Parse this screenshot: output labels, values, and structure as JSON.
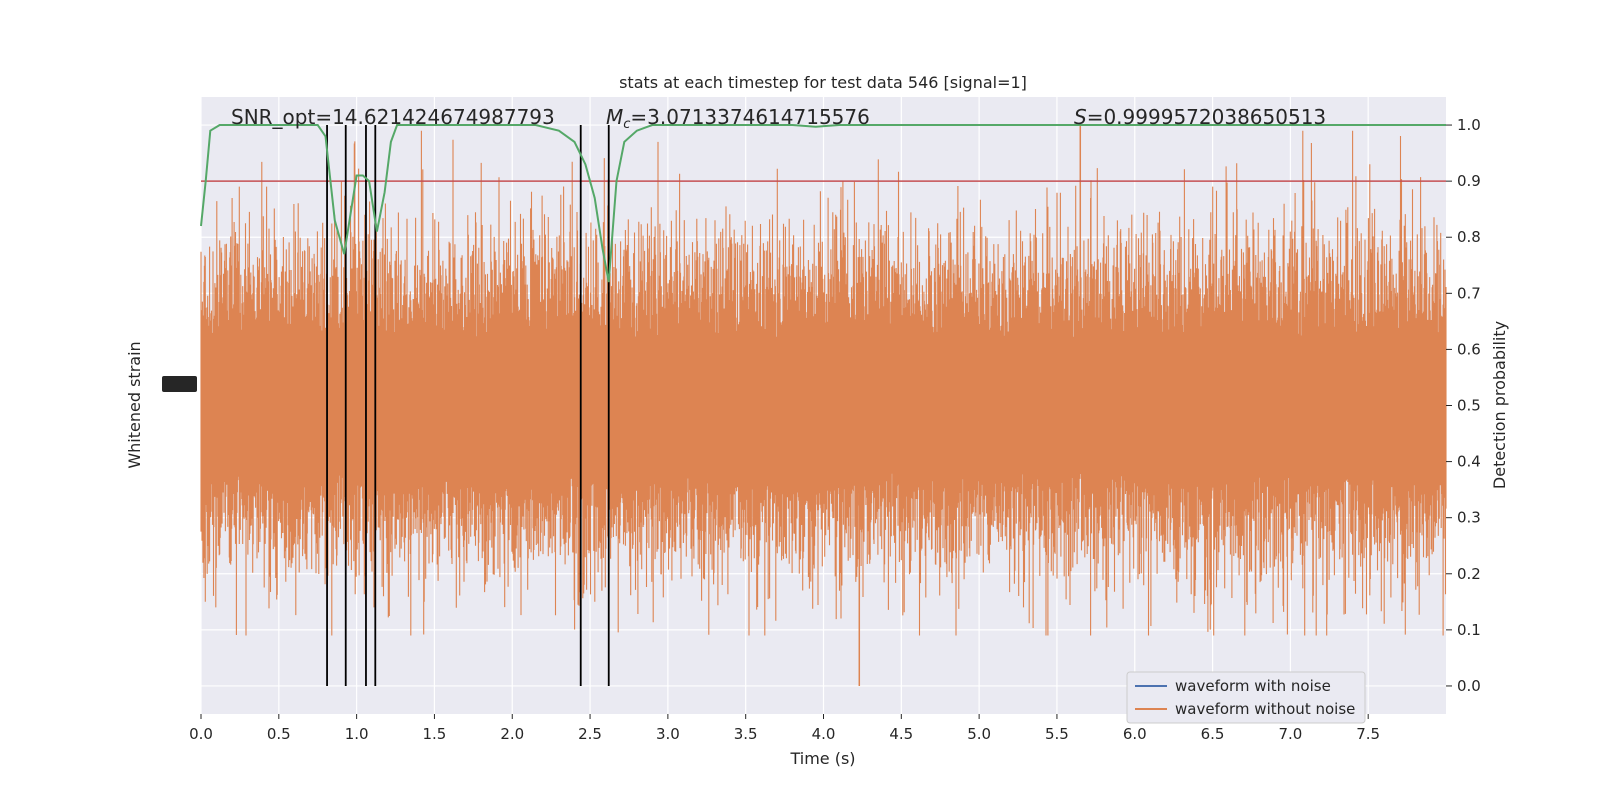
{
  "chart_data": {
    "type": "line",
    "title": "stats at each timestep for test data 546 [signal=1]",
    "xlabel": "Time (s)",
    "ylabel_left": "Whitened strain",
    "ylabel_right": "Detection probability",
    "xlim": [
      0.0,
      8.0
    ],
    "ylim_right": [
      -0.05,
      1.05
    ],
    "x_ticks": [
      "0.0",
      "0.5",
      "1.0",
      "1.5",
      "2.0",
      "2.5",
      "3.0",
      "3.5",
      "4.0",
      "4.5",
      "5.0",
      "5.5",
      "6.0",
      "6.5",
      "7.0",
      "7.5"
    ],
    "x_tick_values": [
      0.0,
      0.5,
      1.0,
      1.5,
      2.0,
      2.5,
      3.0,
      3.5,
      4.0,
      4.5,
      5.0,
      5.5,
      6.0,
      6.5,
      7.0,
      7.5
    ],
    "y_ticks_right": [
      "0.0",
      "0.1",
      "0.2",
      "0.3",
      "0.4",
      "0.5",
      "0.6",
      "0.7",
      "0.8",
      "0.9",
      "1.0"
    ],
    "y_tick_values_right": [
      0.0,
      0.1,
      0.2,
      0.3,
      0.4,
      0.5,
      0.6,
      0.7,
      0.8,
      0.9,
      1.0
    ],
    "annotations": {
      "snr": "SNR_opt=14.621424674987793",
      "mc_symbol": "M",
      "mc_sub": "c",
      "mc_value": "=3.0713374614715576",
      "s_symbol": "S",
      "s_value": "=0.9999572038650513"
    },
    "threshold": 0.9,
    "vertical_markers_s": [
      0.81,
      0.93,
      1.06,
      1.12,
      2.44,
      2.62
    ],
    "series": [
      {
        "name": "waveform with noise",
        "color": "#4c72b0"
      },
      {
        "name": "waveform without noise",
        "color": "#dd8452",
        "envelope_center": 0.5,
        "envelope_typical_amplitude": 0.25,
        "peak_high": 1.0,
        "peak_low": 0.0,
        "peak_low_time": 4.23
      },
      {
        "name": "detection probability",
        "color": "#55a868",
        "x": [
          0.0,
          0.03,
          0.06,
          0.12,
          0.2,
          0.4,
          0.6,
          0.75,
          0.8,
          0.86,
          0.92,
          0.96,
          1.0,
          1.04,
          1.08,
          1.13,
          1.18,
          1.22,
          1.26,
          1.5,
          1.8,
          2.0,
          2.15,
          2.3,
          2.4,
          2.47,
          2.53,
          2.58,
          2.62,
          2.67,
          2.72,
          2.8,
          2.9,
          3.0,
          3.2,
          3.5,
          3.8,
          3.95,
          4.1,
          4.5,
          5.0,
          5.5,
          6.0,
          6.5,
          7.0,
          7.5,
          8.0
        ],
        "y": [
          0.82,
          0.9,
          0.99,
          1.0,
          1.0,
          1.0,
          1.0,
          1.0,
          0.98,
          0.83,
          0.77,
          0.84,
          0.91,
          0.91,
          0.9,
          0.81,
          0.88,
          0.97,
          1.0,
          1.0,
          1.0,
          1.0,
          1.0,
          0.99,
          0.97,
          0.93,
          0.87,
          0.78,
          0.72,
          0.9,
          0.97,
          0.99,
          1.0,
          1.0,
          1.0,
          1.0,
          1.0,
          0.997,
          1.0,
          1.0,
          1.0,
          1.0,
          1.0,
          1.0,
          1.0,
          1.0,
          1.0
        ]
      }
    ],
    "threshold_color": "#c44e52",
    "marker_color": "#000000",
    "plot_background": "#eaeaf2",
    "grid": true,
    "legend_position": "lower-right"
  }
}
